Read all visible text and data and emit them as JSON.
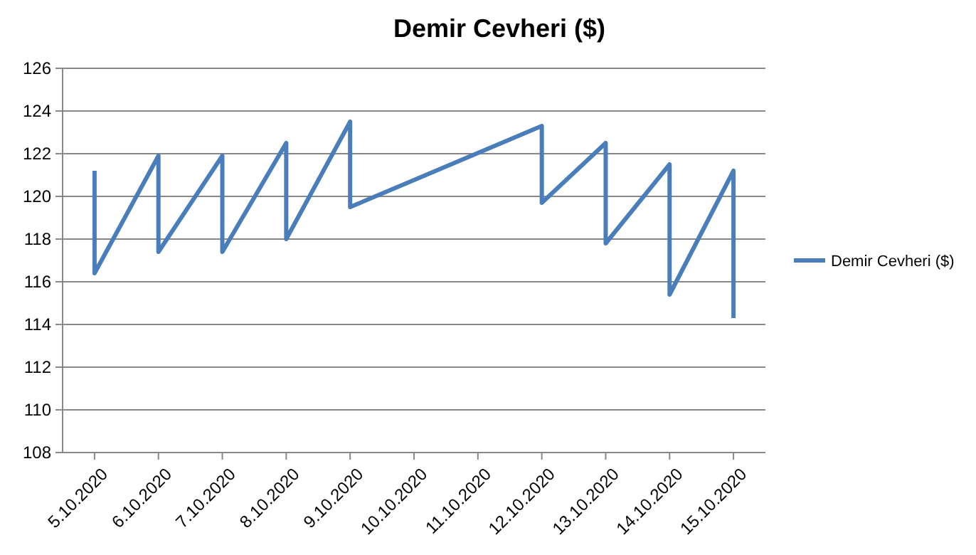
{
  "chart_data": {
    "type": "line",
    "title": "Demir Cevheri ($)",
    "x": [
      "2020-10-05",
      "2020-10-05",
      "2020-10-06",
      "2020-10-06",
      "2020-10-07",
      "2020-10-07",
      "2020-10-08",
      "2020-10-08",
      "2020-10-09",
      "2020-10-09",
      "2020-10-12",
      "2020-10-12",
      "2020-10-13",
      "2020-10-13",
      "2020-10-14",
      "2020-10-14",
      "2020-10-15",
      "2020-10-15"
    ],
    "series": [
      {
        "name": "Demir Cevheri ($)",
        "color": "#4a7ebb",
        "values": [
          121.2,
          116.4,
          121.9,
          117.4,
          121.9,
          117.4,
          122.5,
          118.0,
          123.5,
          119.5,
          123.3,
          119.7,
          122.5,
          117.8,
          121.5,
          115.4,
          121.2,
          114.3
        ]
      }
    ],
    "xlim": [
      "2020-10-04T12:00",
      "2020-10-15T12:00"
    ],
    "xticks": [
      {
        "value": "2020-10-05",
        "label": "5.10.2020"
      },
      {
        "value": "2020-10-06",
        "label": "6.10.2020"
      },
      {
        "value": "2020-10-07",
        "label": "7.10.2020"
      },
      {
        "value": "2020-10-08",
        "label": "8.10.2020"
      },
      {
        "value": "2020-10-09",
        "label": "9.10.2020"
      },
      {
        "value": "2020-10-10",
        "label": "10.10.2020"
      },
      {
        "value": "2020-10-11",
        "label": "11.10.2020"
      },
      {
        "value": "2020-10-12",
        "label": "12.10.2020"
      },
      {
        "value": "2020-10-13",
        "label": "13.10.2020"
      },
      {
        "value": "2020-10-14",
        "label": "14.10.2020"
      },
      {
        "value": "2020-10-15",
        "label": "15.10.2020"
      }
    ],
    "ylim": [
      108,
      126
    ],
    "yticks": [
      108,
      110,
      112,
      114,
      116,
      118,
      120,
      122,
      124,
      126
    ],
    "grid": "y",
    "legend": "right",
    "marker": "none",
    "line_style": "solid"
  }
}
